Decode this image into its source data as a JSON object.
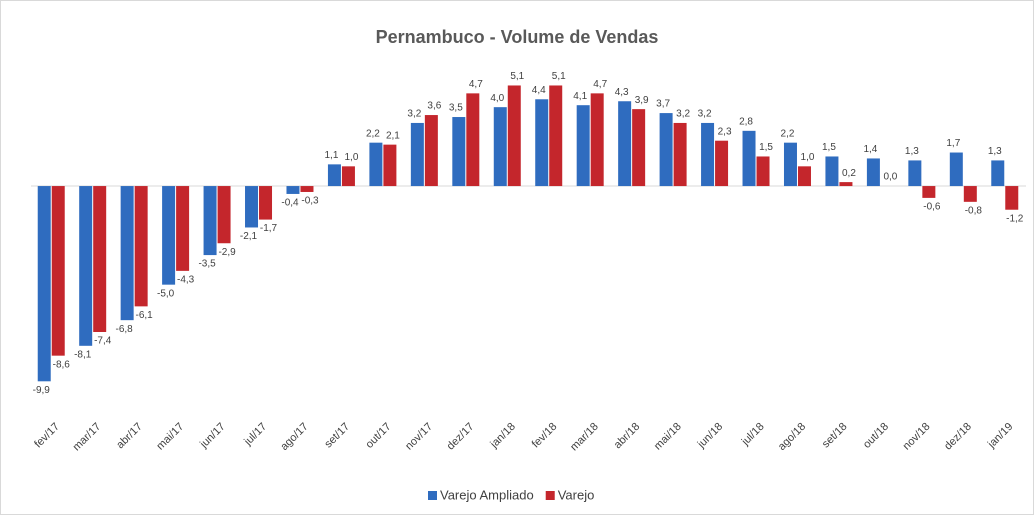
{
  "chart_data": {
    "type": "bar",
    "title": "Pernambuco - Volume de Vendas",
    "categories": [
      "fev/17",
      "mar/17",
      "abr/17",
      "mai/17",
      "jun/17",
      "jul/17",
      "ago/17",
      "set/17",
      "out/17",
      "nov/17",
      "dez/17",
      "jan/18",
      "fev/18",
      "mar/18",
      "abr/18",
      "mai/18",
      "jun/18",
      "jul/18",
      "ago/18",
      "set/18",
      "out/18",
      "nov/18",
      "dez/18",
      "jan/19"
    ],
    "series": [
      {
        "name": "Varejo Ampliado",
        "color": "#2f6cbf",
        "values": [
          -9.9,
          -8.1,
          -6.8,
          -5.0,
          -3.5,
          -2.1,
          -0.4,
          1.1,
          2.2,
          3.2,
          3.5,
          4.0,
          4.4,
          4.1,
          4.3,
          3.7,
          3.2,
          2.8,
          2.2,
          1.5,
          1.4,
          1.3,
          1.7,
          1.3
        ],
        "value_labels": [
          "-9,9",
          "-8,1",
          "-6,8",
          "-5,0",
          "-3,5",
          "-2,1",
          "-0,4",
          "1,1",
          "2,2",
          "3,2",
          "3,5",
          "4,0",
          "4,4",
          "4,1",
          "4,3",
          "3,7",
          "3,2",
          "2,8",
          "2,2",
          "1,5",
          "1,4",
          "1,3",
          "1,7",
          "1,3"
        ]
      },
      {
        "name": "Varejo",
        "color": "#c4262c",
        "values": [
          -8.6,
          -7.4,
          -6.1,
          -4.3,
          -2.9,
          -1.7,
          -0.3,
          1.0,
          2.1,
          3.6,
          4.7,
          5.1,
          5.1,
          4.7,
          3.9,
          3.2,
          2.3,
          1.5,
          1.0,
          0.2,
          0.0,
          -0.6,
          -0.8,
          -1.2
        ],
        "value_labels": [
          "-8,6",
          "-7,4",
          "-6,1",
          "-4,3",
          "-2,9",
          "-1,7",
          "-0,3",
          "1,0",
          "2,1",
          "3,6",
          "4,7",
          "5,1",
          "5,1",
          "4,7",
          "3,9",
          "3,2",
          "2,3",
          "1,5",
          "1,0",
          "0,2",
          "0,0",
          "-0,6",
          "-0,8",
          "-1,2"
        ]
      }
    ],
    "ylim": [
      -11,
      7
    ],
    "legend": "bottom"
  }
}
